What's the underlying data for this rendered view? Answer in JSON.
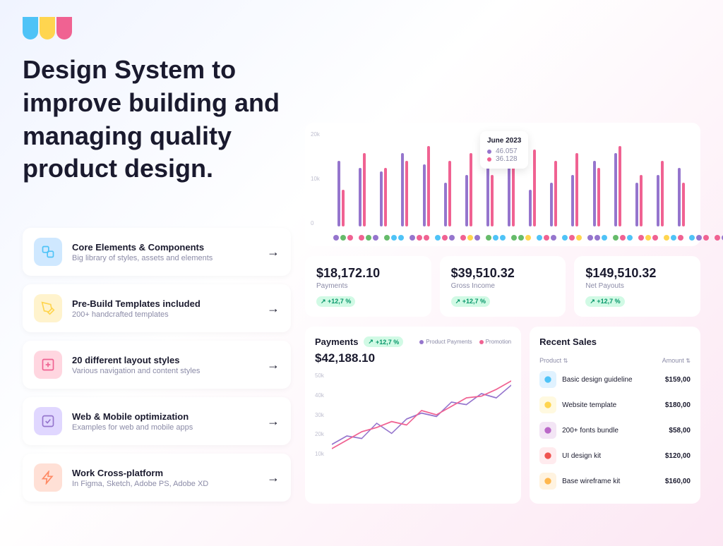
{
  "logo": {
    "colors": [
      "#4fc3f7",
      "#ffd54f",
      "#f06292"
    ]
  },
  "headline": "Design System to improve building and managing quality product design.",
  "features": [
    {
      "title": "Core Elements & Components",
      "sub": "Big library of styles, assets and elements",
      "bg": "#cfe8ff",
      "icon_color": "#4fc3f7"
    },
    {
      "title": "Pre-Build Templates included",
      "sub": "200+ handcrafted templates",
      "bg": "#fff3cd",
      "icon_color": "#ffd54f"
    },
    {
      "title": "20 different layout styles",
      "sub": "Various navigation and content styles",
      "bg": "#ffd6e0",
      "icon_color": "#f06292"
    },
    {
      "title": "Web & Mobile optimization",
      "sub": "Examples for web and mobile apps",
      "bg": "#e0d7ff",
      "icon_color": "#9575cd"
    },
    {
      "title": "Work Cross-platform",
      "sub": "In Figma, Sketch, Adobe PS, Adobe XD",
      "bg": "#ffe0d6",
      "icon_color": "#ff8a65"
    }
  ],
  "tooltip": {
    "title": "June 2023",
    "rows": [
      {
        "color": "#9575cd",
        "value": "46.057"
      },
      {
        "color": "#f06292",
        "value": "36.128"
      }
    ]
  },
  "bar_chart": {
    "y_ticks": [
      "20k",
      "10k",
      "0"
    ],
    "colors": {
      "series1": "#9575cd",
      "series2": "#f06292"
    },
    "data": [
      [
        18,
        10
      ],
      [
        16,
        20
      ],
      [
        15,
        16
      ],
      [
        20,
        18
      ],
      [
        17,
        22
      ],
      [
        12,
        18
      ],
      [
        14,
        20
      ],
      [
        18,
        14
      ],
      [
        22,
        26
      ],
      [
        10,
        21
      ],
      [
        12,
        18
      ],
      [
        14,
        20
      ],
      [
        18,
        16
      ],
      [
        20,
        22
      ],
      [
        12,
        14
      ],
      [
        14,
        18
      ],
      [
        16,
        12
      ]
    ],
    "dot_colors": [
      "#4fc3f7",
      "#ffd54f",
      "#f06292",
      "#9575cd",
      "#66bb6a"
    ]
  },
  "stats": [
    {
      "value": "$18,172.10",
      "label": "Payments",
      "badge": "+12,7 %"
    },
    {
      "value": "$39,510.32",
      "label": "Gross Income",
      "badge": "+12,7 %"
    },
    {
      "value": "$149,510.32",
      "label": "Net Payouts",
      "badge": "+12,7 %"
    }
  ],
  "payments": {
    "title": "Payments",
    "badge": "+12,7 %",
    "value": "$42,188.10",
    "legend": [
      {
        "color": "#9575cd",
        "label": "Product Payments"
      },
      {
        "color": "#f06292",
        "label": "Promotion"
      }
    ],
    "y_ticks": [
      "50k",
      "40k",
      "30k",
      "20k",
      "10k"
    ],
    "line1_color": "#9575cd",
    "line2_color": "#f06292",
    "line1": "0,85 25,75 50,78 75,60 100,72 125,55 150,48 175,52 200,35 225,38 250,25 275,30 300,15",
    "line2": "0,90 25,80 50,70 75,65 100,58 125,62 150,45 175,50 200,40 225,30 250,28 275,20 300,10"
  },
  "sales": {
    "title": "Recent Sales",
    "columns": {
      "product": "Product",
      "amount": "Amount"
    },
    "rows": [
      {
        "icon_bg": "#e0f2ff",
        "icon_color": "#4fc3f7",
        "name": "Basic design guideline",
        "amount": "$159,00"
      },
      {
        "icon_bg": "#fff9e0",
        "icon_color": "#ffd54f",
        "name": "Website template",
        "amount": "$180,00"
      },
      {
        "icon_bg": "#f3e5f5",
        "icon_color": "#ba68c8",
        "name": "200+ fonts bundle",
        "amount": "$58,00"
      },
      {
        "icon_bg": "#ffebee",
        "icon_color": "#ef5350",
        "name": "UI design kit",
        "amount": "$120,00"
      },
      {
        "icon_bg": "#fff3e0",
        "icon_color": "#ffb74d",
        "name": "Base wireframe kit",
        "amount": "$160,00"
      }
    ]
  }
}
